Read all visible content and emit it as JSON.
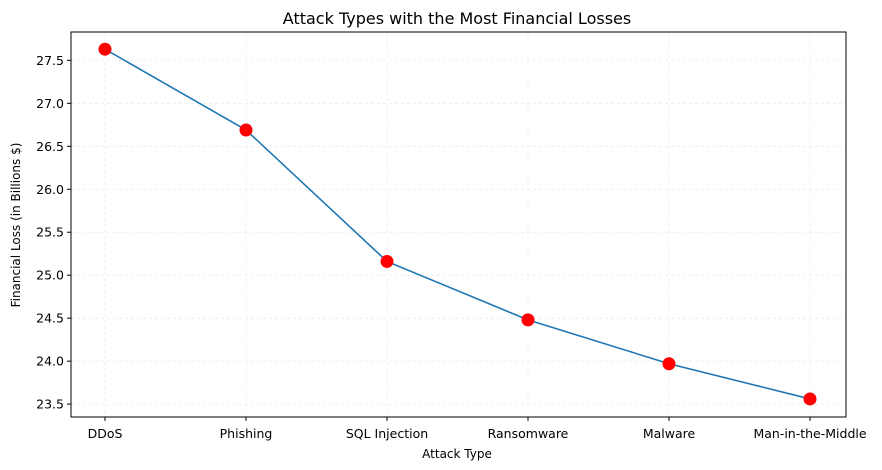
{
  "chart_data": {
    "type": "line",
    "title": "Attack Types with the Most Financial Losses",
    "xlabel": "Attack Type",
    "ylabel": "Financial Loss (in Billions $)",
    "categories": [
      "DDoS",
      "Phishing",
      "SQL Injection",
      "Ransomware",
      "Malware",
      "Man-in-the-Middle"
    ],
    "values": [
      27.63,
      26.69,
      25.16,
      24.48,
      23.97,
      23.56
    ],
    "yticks": [
      "23.5",
      "24.0",
      "24.5",
      "25.0",
      "25.5",
      "26.0",
      "26.5",
      "27.0",
      "27.5"
    ],
    "ylim": [
      23.35,
      27.83
    ],
    "grid": true,
    "line_color": "#1f77b4",
    "marker_color": "#ff0000"
  }
}
